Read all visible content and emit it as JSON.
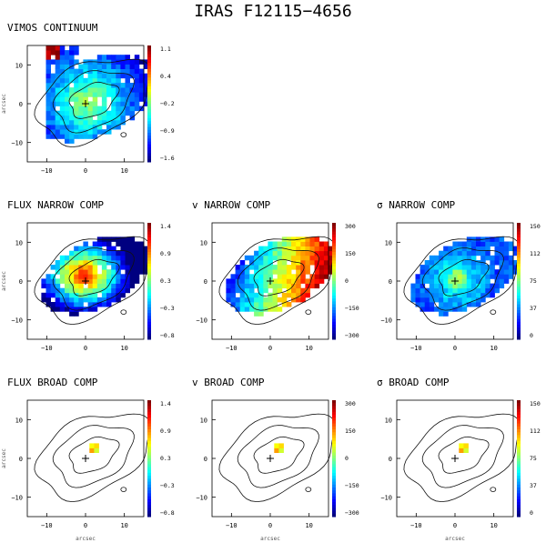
{
  "figure": {
    "title": "IRAS F12115−4656"
  },
  "panels": [
    {
      "id": "vimos-continuum",
      "title": "VIMOS CONTINUUM",
      "map": "continuum",
      "show_map": true,
      "colorbar": {
        "ticks": [
          "1.1",
          "0.4",
          "−0.2",
          "−0.9",
          "−1.6"
        ]
      },
      "xticks": [
        "−10",
        "0",
        "10"
      ],
      "yticks": [
        "10",
        "0",
        "−10"
      ],
      "ylabel": "arcsec",
      "xlabel": ""
    },
    {
      "id": "flux-narrow",
      "title": "FLUX NARROW COMP",
      "map": "flux_narrow",
      "show_map": true,
      "colorbar": {
        "ticks": [
          "1.4",
          "0.9",
          "0.3",
          "−0.3",
          "−0.8"
        ]
      },
      "xticks": [
        "−10",
        "0",
        "10"
      ],
      "yticks": [
        "10",
        "0",
        "−10"
      ],
      "ylabel": "arcsec",
      "xlabel": ""
    },
    {
      "id": "v-narrow",
      "title": "v NARROW COMP",
      "map": "velocity",
      "show_map": true,
      "colorbar": {
        "ticks": [
          "300",
          "150",
          "0",
          "−150",
          "−300"
        ]
      },
      "xticks": [
        "−10",
        "0",
        "10"
      ],
      "yticks": [
        "10",
        "0",
        "−10"
      ],
      "ylabel": "",
      "xlabel": ""
    },
    {
      "id": "sigma-narrow",
      "title": "σ NARROW COMP",
      "map": "sigma",
      "show_map": true,
      "colorbar": {
        "ticks": [
          "150",
          "112",
          "75",
          "37",
          "0"
        ]
      },
      "xticks": [
        "−10",
        "0",
        "10"
      ],
      "yticks": [
        "10",
        "0",
        "−10"
      ],
      "ylabel": "",
      "xlabel": ""
    },
    {
      "id": "flux-broad",
      "title": "FLUX BROAD COMP",
      "map": "none",
      "show_map": false,
      "colorbar": {
        "ticks": [
          "1.4",
          "0.9",
          "0.3",
          "−0.3",
          "−0.8"
        ]
      },
      "xticks": [
        "−10",
        "0",
        "10"
      ],
      "yticks": [
        "10",
        "0",
        "−10"
      ],
      "ylabel": "arcsec",
      "xlabel": "arcsec"
    },
    {
      "id": "v-broad",
      "title": "v BROAD COMP",
      "map": "none",
      "show_map": false,
      "colorbar": {
        "ticks": [
          "300",
          "150",
          "0",
          "−150",
          "−300"
        ]
      },
      "xticks": [
        "−10",
        "0",
        "10"
      ],
      "yticks": [
        "10",
        "0",
        "−10"
      ],
      "ylabel": "",
      "xlabel": "arcsec"
    },
    {
      "id": "sigma-broad",
      "title": "σ BROAD COMP",
      "map": "none",
      "show_map": false,
      "colorbar": {
        "ticks": [
          "150",
          "112",
          "75",
          "37",
          "0"
        ]
      },
      "xticks": [
        "−10",
        "0",
        "10"
      ],
      "yticks": [
        "10",
        "0",
        "−10"
      ],
      "ylabel": "",
      "xlabel": "arcsec"
    }
  ],
  "colors": {
    "contour": "#111111",
    "axis": "#000000",
    "text": "#000000",
    "colormap": [
      "#000080",
      "#0000ff",
      "#0080ff",
      "#00ffff",
      "#80ff80",
      "#ffff00",
      "#ff8000",
      "#ff0000",
      "#800000"
    ]
  }
}
